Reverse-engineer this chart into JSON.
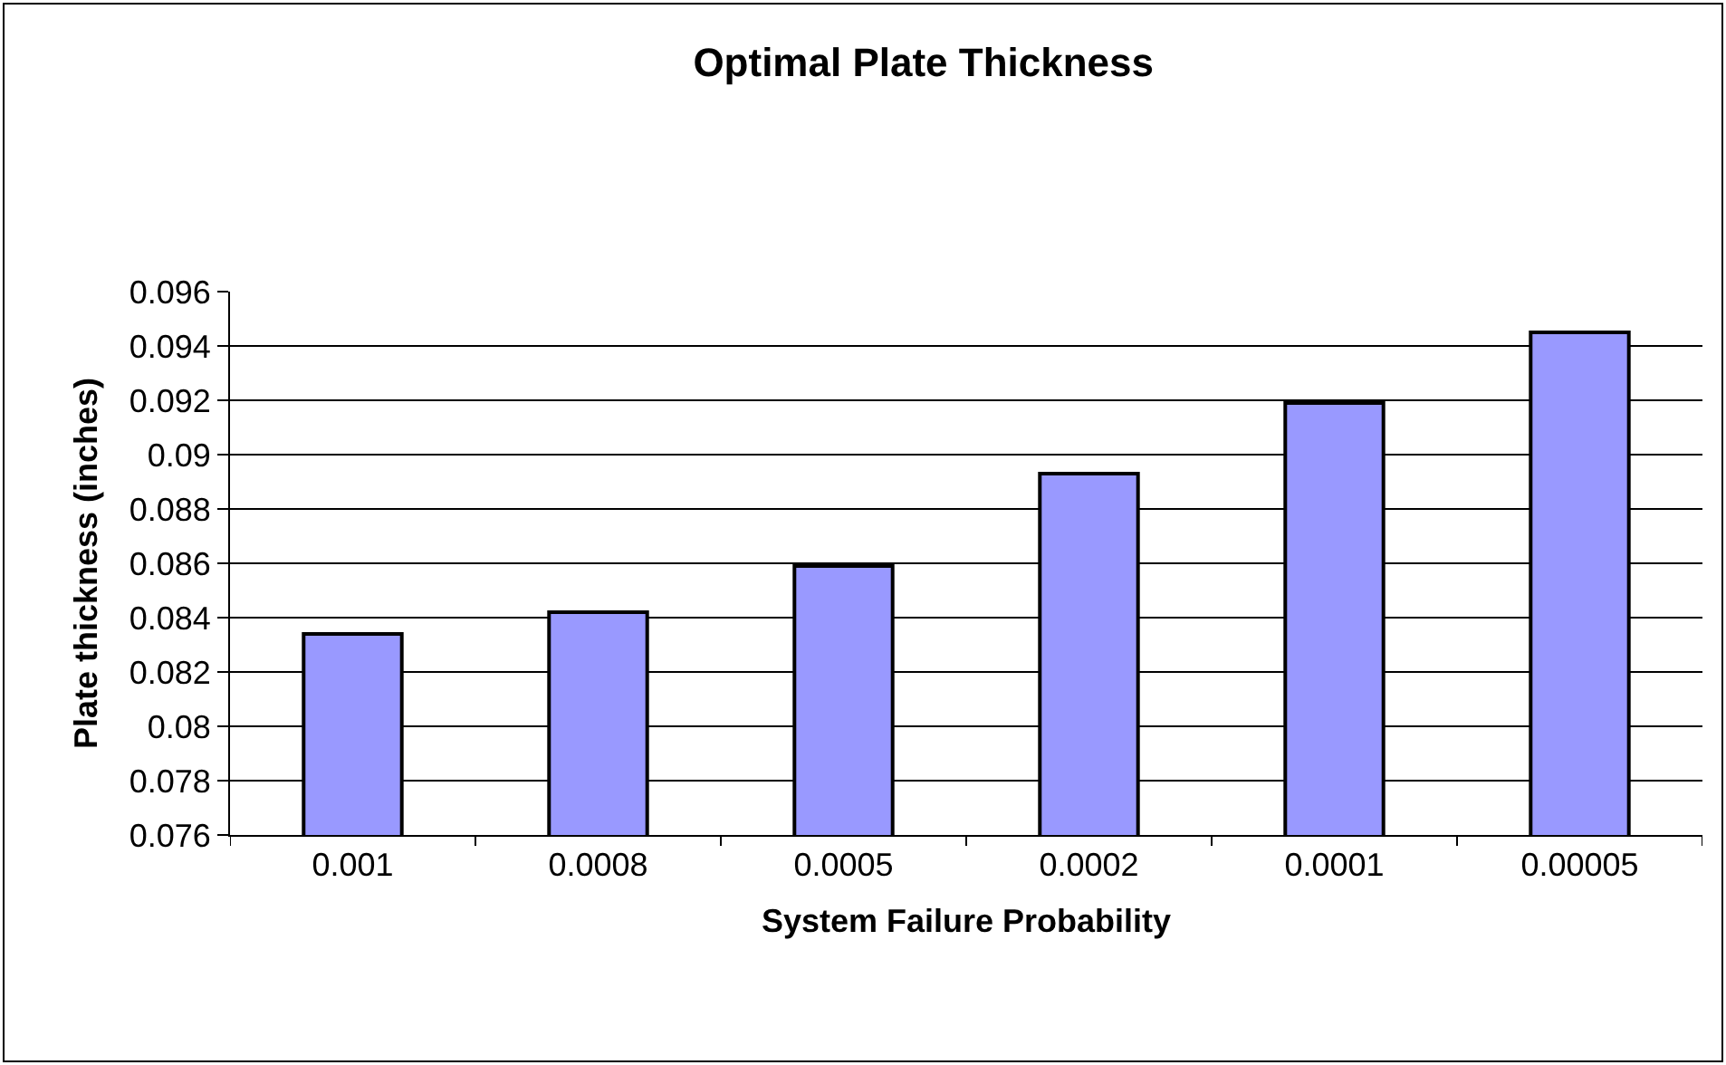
{
  "chart_data": {
    "type": "bar",
    "title": "Optimal Plate Thickness",
    "xlabel": "System Failure Probability",
    "ylabel": "Plate thickness (inches)",
    "categories": [
      "0.001",
      "0.0008",
      "0.0005",
      "0.0002",
      "0.0001",
      "0.00005"
    ],
    "values": [
      0.0834,
      0.0842,
      0.0859,
      0.0893,
      0.0919,
      0.0945
    ],
    "color": "#9999ff",
    "ylim": [
      0.076,
      0.096
    ],
    "yticks": [
      0.076,
      0.078,
      0.08,
      0.082,
      0.084,
      0.086,
      0.088,
      0.09,
      0.092,
      0.094,
      0.096
    ],
    "grid": "y",
    "legend": false
  }
}
